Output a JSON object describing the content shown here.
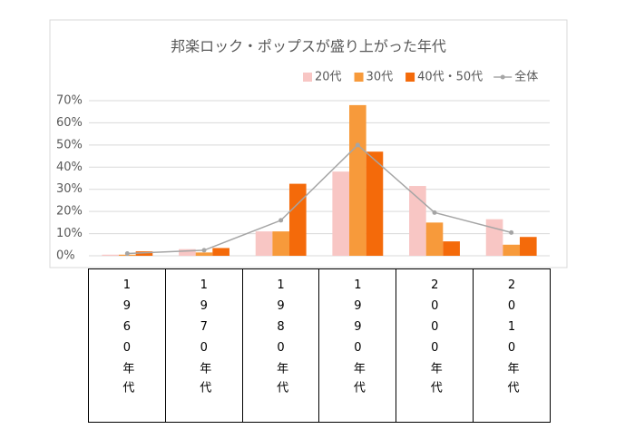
{
  "chart_data": {
    "type": "bar",
    "title": "邦楽ロック・ポップスが盛り上がった年代",
    "categories": [
      "1960年代",
      "1970年代",
      "1980年代",
      "1990年代",
      "2000年代",
      "2010年代"
    ],
    "series": [
      {
        "name": "20代",
        "color": "#f8c6c4",
        "values": [
          0.5,
          3,
          11,
          38,
          31.5,
          16.5
        ]
      },
      {
        "name": "30代",
        "color": "#f79a3b",
        "values": [
          0.5,
          1.5,
          11,
          68,
          15,
          5
        ]
      },
      {
        "name": "40代・50代",
        "color": "#f46a0a",
        "values": [
          2,
          3.5,
          32.5,
          47,
          6.5,
          8.5
        ]
      },
      {
        "name": "全体",
        "color": "#a5a5a5",
        "type": "line",
        "values": [
          1,
          2.5,
          16,
          50,
          19.5,
          10.5
        ]
      }
    ],
    "ylim": [
      0,
      70
    ],
    "yticks": [
      {
        "value": 0,
        "label": "0%"
      },
      {
        "value": 10,
        "label": "10%"
      },
      {
        "value": 20,
        "label": "20%"
      },
      {
        "value": 30,
        "label": "30%"
      },
      {
        "value": 40,
        "label": "40%"
      },
      {
        "value": 50,
        "label": "50%"
      },
      {
        "value": 60,
        "label": "60%"
      },
      {
        "value": 70,
        "label": "70%"
      }
    ],
    "grid": true,
    "legend": "top-right"
  }
}
